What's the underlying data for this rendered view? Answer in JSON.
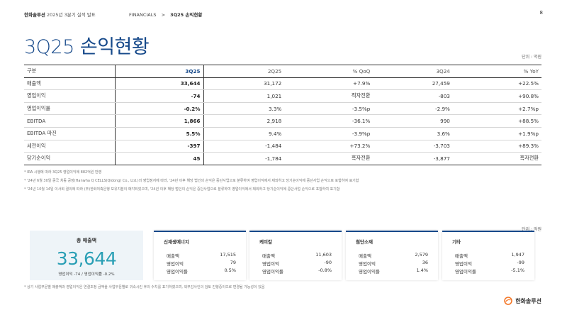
{
  "header": {
    "company": "한화솔루션",
    "report": "2025년 3분기 실적 발표",
    "nav_section": "FINANCIALS",
    "nav_separator": ">",
    "nav_current": "3Q25 손익현황",
    "page_number": "8"
  },
  "title": "3Q25 손익현황",
  "unit_label": "단위 : 억원",
  "table": {
    "columns": [
      "구분",
      "3Q25",
      "2Q25",
      "% QoQ",
      "3Q24",
      "% YoY"
    ],
    "rows": [
      [
        "매출액",
        "33,644",
        "31,172",
        "+7.9%",
        "27,459",
        "+22.5%"
      ],
      [
        "영업이익",
        "-74",
        "1,021",
        "적자전환",
        "-803",
        "+90.8%"
      ],
      [
        "영업이익률",
        "-0.2%",
        "3.3%",
        "-3.5%p",
        "-2.9%",
        "+2.7%p"
      ],
      [
        "EBITDA",
        "1,866",
        "2,918",
        "-36.1%",
        "990",
        "+88.5%"
      ],
      [
        "EBITDA 마진",
        "5.5%",
        "9.4%",
        "-3.9%p",
        "3.6%",
        "+1.9%p"
      ],
      [
        "세전이익",
        "-397",
        "-1,484",
        "+73.2%",
        "-3,703",
        "+89.3%"
      ],
      [
        "당기순이익",
        "45",
        "-1,784",
        "흑자전환",
        "-3,877",
        "흑자전환"
      ]
    ]
  },
  "notes": [
    "* IRA 시행에 따라 3Q25 영업이익에 882억원 반영",
    "* '24년 6월 30일 중국 치동 공장(Hanwha Q CELLS(Qidong) Co., Ltd.)의 영업정지에 따라, '24년 이후 해당 법인의 손익은 중단사업으로 분류하여 영업이익에서 제외하고 당기순이익에 중단사업 손익으로 포함하여 표기함",
    "* '24년 10월 14일 이사회 결의에 따라 (주)한화저축은행 보유지분이 매각되었으며, '24년 이후 해당 법인의 손익은 중단사업으로 분류하여 영업이익에서 제외하고 당기순이익에 중단사업 손익으로 포함하여 표기함"
  ],
  "cards_unit_label": "단위 : 억원",
  "total_card": {
    "label": "총 매출액",
    "value": "33,644",
    "sub": "영업이익 -74 / 영업이익률 -0.2%"
  },
  "segments": [
    {
      "name": "신재생에너지",
      "rows": [
        [
          "매출액",
          "17,515"
        ],
        [
          "영업이익",
          "79"
        ],
        [
          "영업이익률",
          "0.5%"
        ]
      ]
    },
    {
      "name": "케미칼",
      "rows": [
        [
          "매출액",
          "11,603"
        ],
        [
          "영업이익",
          "-90"
        ],
        [
          "영업이익률",
          "-0.8%"
        ]
      ]
    },
    {
      "name": "첨단소재",
      "rows": [
        [
          "매출액",
          "2,579"
        ],
        [
          "영업이익",
          "36"
        ],
        [
          "영업이익률",
          "1.4%"
        ]
      ]
    },
    {
      "name": "기타",
      "rows": [
        [
          "매출액",
          "1,947"
        ],
        [
          "영업이익",
          "-99"
        ],
        [
          "영업이익률",
          "-5.1%"
        ]
      ]
    }
  ],
  "footnote": "* 상기 사업부문별 매출액과 영업이익은 연결조정 금액을 사업부문별로 귀속시킨 후의 수치를 표기하였으며, 외부감사인의 검토 진행중이므로 변경될 가능성이 있음",
  "logo_text": "한화솔루션",
  "colors": {
    "brand_blue": "#16498a",
    "accent_teal": "#2a9fb5",
    "logo_orange": "#f37321"
  },
  "icons": {
    "logo": "hanwha-logo-icon"
  }
}
